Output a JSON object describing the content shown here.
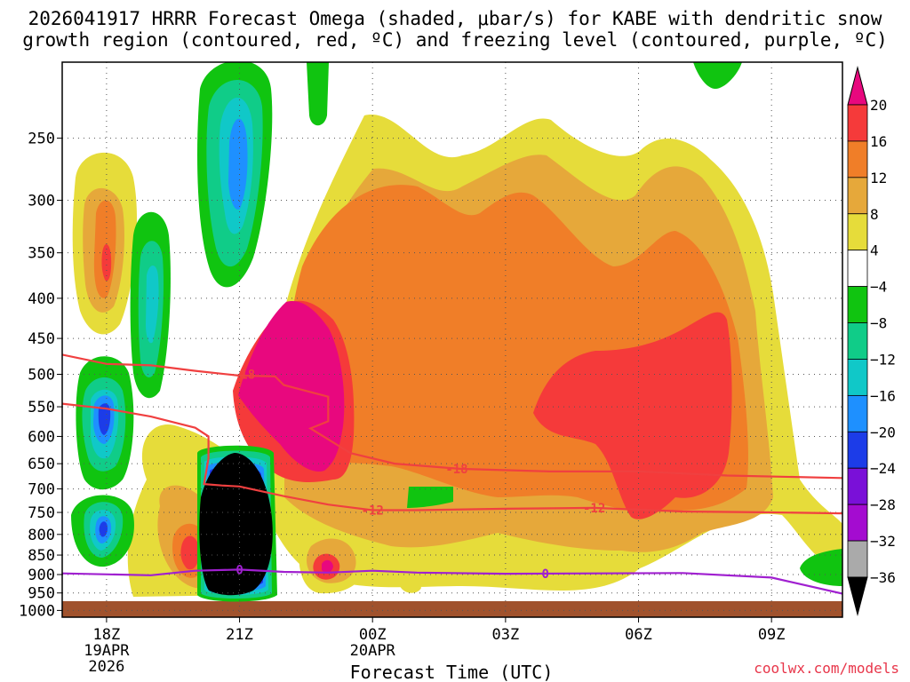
{
  "title_line1": "2026041917 HRRR Forecast Omega (shaded, μbar/s) for KABE with dendritic snow",
  "title_line2": "growth region (contoured, red, ºC) and freezing level (contoured, purple, ºC)",
  "watermark": "coolwx.com/models",
  "chart_data": {
    "type": "heatmap",
    "xlabel": "Forecast Time (UTC)",
    "ylabel": "",
    "x_ticks": [
      {
        "hour": 18,
        "label": "18Z",
        "sub1": "19APR",
        "sub2": "2026"
      },
      {
        "hour": 21,
        "label": "21Z",
        "sub1": "",
        "sub2": ""
      },
      {
        "hour": 24,
        "label": "00Z",
        "sub1": "20APR",
        "sub2": ""
      },
      {
        "hour": 27,
        "label": "03Z",
        "sub1": "",
        "sub2": ""
      },
      {
        "hour": 30,
        "label": "06Z",
        "sub1": "",
        "sub2": ""
      },
      {
        "hour": 33,
        "label": "09Z",
        "sub1": "",
        "sub2": ""
      }
    ],
    "xlim_hours": [
      17.0,
      34.6
    ],
    "y_ticks": [
      250,
      300,
      350,
      400,
      450,
      500,
      550,
      600,
      650,
      700,
      750,
      800,
      850,
      900,
      950,
      1000
    ],
    "ylim_hpa": [
      200,
      1020
    ],
    "y_scale": "log-pressure",
    "grid": true,
    "colorbar": {
      "levels": [
        "20",
        "16",
        "12",
        "8",
        "4",
        "−4",
        "−8",
        "−12",
        "−16",
        "−20",
        "−24",
        "−28",
        "−32",
        "−36"
      ],
      "colors": [
        "#e8087e",
        "#f53a3a",
        "#f07e28",
        "#e6a83a",
        "#e6dc3a",
        "#ffffff",
        "#10c410",
        "#10cc88",
        "#10c8c8",
        "#1e90ff",
        "#1c3ce8",
        "#7a10d8",
        "#a40cd0",
        "#aaaaaa",
        "#000000"
      ],
      "position": "right"
    },
    "contours": [
      {
        "name": "dendritic growth -18",
        "label": "-18",
        "color": "#f04040",
        "points": [
          [
            17.0,
            472
          ],
          [
            18.0,
            485
          ],
          [
            19.0,
            487
          ],
          [
            20.0,
            495
          ],
          [
            21.0,
            502
          ],
          [
            21.8,
            503
          ],
          [
            22.0,
            516
          ],
          [
            23.0,
            534
          ],
          [
            23.0,
            574
          ],
          [
            22.6,
            586
          ],
          [
            23.5,
            630
          ],
          [
            24.5,
            650
          ],
          [
            26.0,
            660
          ],
          [
            28.0,
            665
          ],
          [
            30.0,
            665
          ],
          [
            32.0,
            673
          ],
          [
            34.6,
            678
          ]
        ]
      },
      {
        "name": "dendritic growth -12",
        "label": "-12",
        "color": "#f04040",
        "points": [
          [
            17.0,
            545
          ],
          [
            18.0,
            553
          ],
          [
            19.0,
            566
          ],
          [
            20.0,
            585
          ],
          [
            20.3,
            600
          ],
          [
            20.3,
            640
          ],
          [
            20.2,
            690
          ],
          [
            20.6,
            693
          ],
          [
            21.0,
            695
          ],
          [
            22.0,
            715
          ],
          [
            23.0,
            733
          ],
          [
            24.0,
            745
          ],
          [
            25.0,
            745
          ],
          [
            27.0,
            742
          ],
          [
            29.0,
            740
          ],
          [
            31.0,
            748
          ],
          [
            33.0,
            750
          ],
          [
            34.6,
            752
          ]
        ]
      },
      {
        "name": "freezing level 0",
        "label": "0",
        "color": "#a020d0",
        "points": [
          [
            17.0,
            897
          ],
          [
            19.0,
            902
          ],
          [
            20.0,
            890
          ],
          [
            21.0,
            887
          ],
          [
            22.0,
            893
          ],
          [
            23.0,
            895
          ],
          [
            24.0,
            890
          ],
          [
            25.0,
            895
          ],
          [
            27.0,
            898
          ],
          [
            29.0,
            897
          ],
          [
            31.0,
            896
          ],
          [
            33.0,
            908
          ],
          [
            34.6,
            952
          ]
        ]
      }
    ],
    "contour_labels": [
      {
        "text": "-18",
        "hour": 21.1,
        "p": 500
      },
      {
        "text": "-18",
        "hour": 25.9,
        "p": 660
      },
      {
        "text": "-12",
        "hour": 24.0,
        "p": 745
      },
      {
        "text": "-12",
        "hour": 29.0,
        "p": 740
      },
      {
        "text": "0",
        "hour": 21.0,
        "p": 887
      },
      {
        "text": "0",
        "hour": 27.9,
        "p": 898
      }
    ]
  }
}
